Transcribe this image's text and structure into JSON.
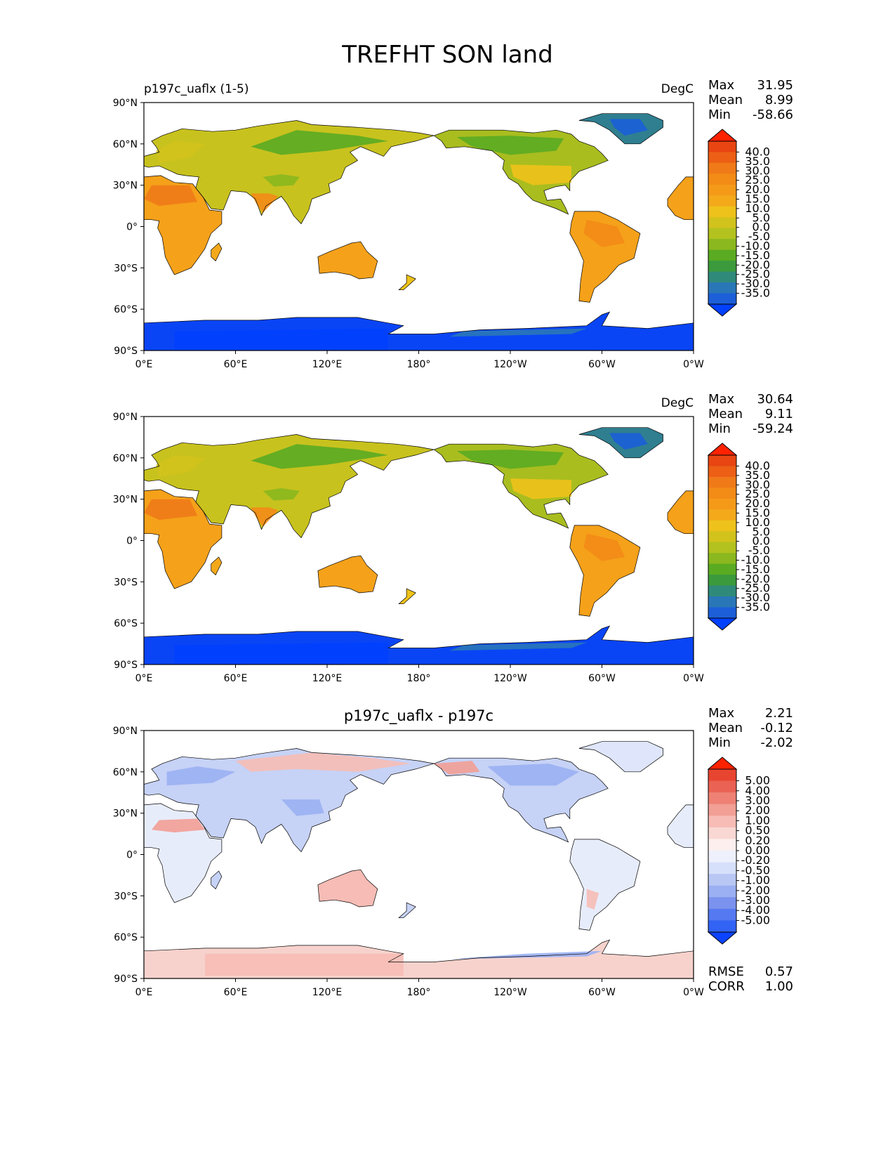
{
  "title": "TREFHT SON land",
  "lat_ticks": [
    "90°N",
    "60°N",
    "30°N",
    "0°",
    "30°S",
    "60°S",
    "90°S"
  ],
  "lon_ticks": [
    "0°E",
    "60°E",
    "120°E",
    "180°",
    "120°W",
    "60°W",
    "0°W"
  ],
  "colors": {
    "temp_scale": [
      "#0040ff",
      "#1c5fd8",
      "#2a77b8",
      "#2f8a7a",
      "#3b9a3c",
      "#5aab22",
      "#8ab81e",
      "#b3c21e",
      "#d2c21c",
      "#eec21a",
      "#f4a91b",
      "#f59a18",
      "#f38b17",
      "#f07a18",
      "#ec5f15",
      "#e84512",
      "#ff2200"
    ],
    "diff_scale": [
      "#0b43ff",
      "#3163f5",
      "#5579f0",
      "#7b92ee",
      "#9ab0f3",
      "#b9c7f5",
      "#d6e0fa",
      "#eef1fc",
      "#fcefee",
      "#f9d8d4",
      "#f6bcb5",
      "#f29f95",
      "#ee8174",
      "#ea6254",
      "#e84530",
      "#ff2200"
    ],
    "land_outline": "#000000"
  },
  "chart_data": [
    {
      "type": "heatmap",
      "panel_label": "p197c_uaflx (1-5)",
      "units": "DegC",
      "stats": {
        "max_label": "Max",
        "max": "31.95",
        "mean_label": "Mean",
        "mean": "8.99",
        "min_label": "Min",
        "min": "-58.66"
      },
      "colorbar_levels": [
        "40.0",
        "35.0",
        "30.0",
        "25.0",
        "20.0",
        "15.0",
        "10.0",
        "5.0",
        "0.0",
        "-5.0",
        "-10.0",
        "-15.0",
        "-20.0",
        "-25.0",
        "-30.0",
        "-35.0"
      ],
      "xlim": [
        0,
        360
      ],
      "ylim": [
        -90,
        90
      ]
    },
    {
      "type": "heatmap",
      "panel_label": "",
      "units": "DegC",
      "stats": {
        "max_label": "Max",
        "max": "30.64",
        "mean_label": "Mean",
        "mean": "9.11",
        "min_label": "Min",
        "min": "-59.24"
      },
      "colorbar_levels": [
        "40.0",
        "35.0",
        "30.0",
        "25.0",
        "20.0",
        "15.0",
        "10.0",
        "5.0",
        "0.0",
        "-5.0",
        "-10.0",
        "-15.0",
        "-20.0",
        "-25.0",
        "-30.0",
        "-35.0"
      ],
      "xlim": [
        0,
        360
      ],
      "ylim": [
        -90,
        90
      ]
    },
    {
      "type": "heatmap",
      "panel_title": "p197c_uaflx - p197c",
      "stats": {
        "max_label": "Max",
        "max": "2.21",
        "mean_label": "Mean",
        "mean": "-0.12",
        "min_label": "Min",
        "min": "-2.02"
      },
      "extra_stats": {
        "rmse_label": "RMSE",
        "rmse": "0.57",
        "corr_label": "CORR",
        "corr": "1.00"
      },
      "colorbar_levels": [
        "5.00",
        "4.00",
        "3.00",
        "2.00",
        "1.00",
        "0.50",
        "0.20",
        "0.00",
        "-0.20",
        "-0.50",
        "-1.00",
        "-2.00",
        "-3.00",
        "-4.00",
        "-5.00"
      ],
      "xlim": [
        0,
        360
      ],
      "ylim": [
        -90,
        90
      ]
    }
  ]
}
